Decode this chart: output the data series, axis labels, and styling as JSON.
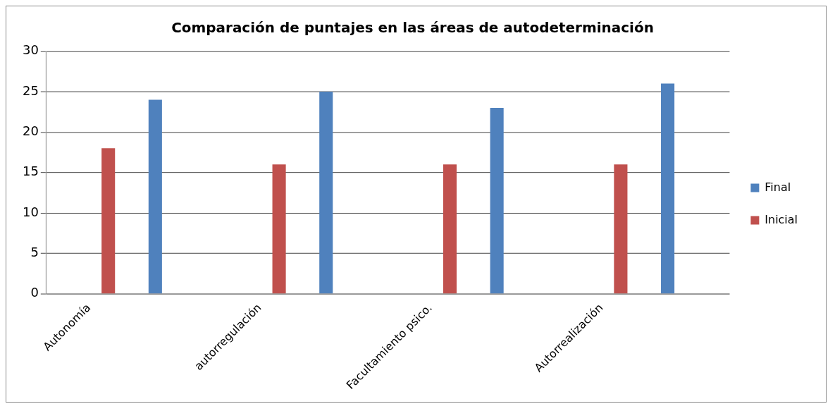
{
  "chart_data": {
    "type": "bar",
    "title": "Comparación de puntajes en las áreas de autodeterminación",
    "categories": [
      "Autonomía",
      null,
      "autorregulación",
      null,
      "Facultamiento psico.",
      null,
      "Autorrealización",
      null
    ],
    "series": [
      {
        "name": "Final",
        "color": "#4f81bd",
        "values": [
          0,
          24,
          0,
          25,
          0,
          23,
          0,
          26
        ]
      },
      {
        "name": "Inicial",
        "color": "#c0504d",
        "values": [
          18,
          0,
          16,
          0,
          16,
          0,
          16,
          0
        ]
      }
    ],
    "ylim": [
      0,
      30
    ],
    "yticks": [
      0,
      5,
      10,
      15,
      20,
      25,
      30
    ],
    "grid": "y",
    "legend": "right"
  }
}
